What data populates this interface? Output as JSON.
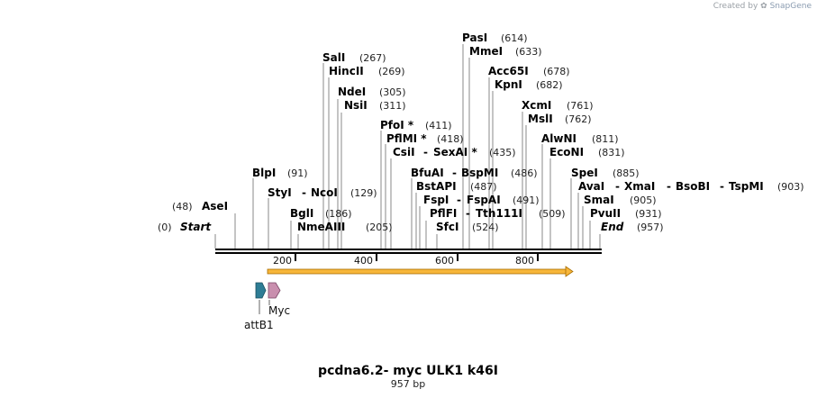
{
  "credit": {
    "prefix": "Created by",
    "brand": "SnapGene"
  },
  "title": "pcdna6.2- myc ULK1 k46I",
  "length": "957 bp",
  "enzymes": {
    "start": {
      "name": "Start",
      "pos": "(0)"
    },
    "end": {
      "name": "End",
      "pos": "(957)"
    },
    "asei": {
      "name": "AseI",
      "pos": "(48)"
    },
    "blpi": {
      "name": "BlpI",
      "pos": "(91)"
    },
    "styi": {
      "name": "StyI"
    },
    "ncoi": {
      "name": "NcoI",
      "pos": "(129)"
    },
    "bgli": {
      "name": "BglI",
      "pos": "(186)"
    },
    "nmeaiii": {
      "name": "NmeAIII",
      "pos": "(205)"
    },
    "sali": {
      "name": "SalI",
      "pos": "(267)"
    },
    "hincii": {
      "name": "HincII",
      "pos": "(269)"
    },
    "ndei": {
      "name": "NdeI",
      "pos": "(305)"
    },
    "nsii": {
      "name": "NsiI",
      "pos": "(311)"
    },
    "pfoi": {
      "name": "PfoI *",
      "pos": "(411)"
    },
    "pflmi": {
      "name": "PflMI *",
      "pos": "(418)"
    },
    "csii": {
      "name": "CsiI"
    },
    "sexai": {
      "name": "SexAI *",
      "pos": "(435)"
    },
    "bfuai": {
      "name": "BfuAI"
    },
    "bspmi": {
      "name": "BspMI",
      "pos": "(486)"
    },
    "bstapi": {
      "name": "BstAPI",
      "pos": "(487)"
    },
    "fspi": {
      "name": "FspI"
    },
    "fspai": {
      "name": "FspAI",
      "pos": "(491)"
    },
    "pflfi": {
      "name": "PflFI"
    },
    "tth111i": {
      "name": "Tth111I",
      "pos": "(509)"
    },
    "sfci": {
      "name": "SfcI",
      "pos": "(524)"
    },
    "pasi": {
      "name": "PasI",
      "pos": "(614)"
    },
    "mmei": {
      "name": "MmeI",
      "pos": "(633)"
    },
    "acc65i": {
      "name": "Acc65I",
      "pos": "(678)"
    },
    "kpni": {
      "name": "KpnI",
      "pos": "(682)"
    },
    "xcmi": {
      "name": "XcmI",
      "pos": "(761)"
    },
    "msli": {
      "name": "MslI",
      "pos": "(762)"
    },
    "alwni": {
      "name": "AlwNI",
      "pos": "(811)"
    },
    "econi": {
      "name": "EcoNI",
      "pos": "(831)"
    },
    "spei": {
      "name": "SpeI",
      "pos": "(885)"
    },
    "avai": {
      "name": "AvaI"
    },
    "xmai": {
      "name": "XmaI"
    },
    "bsobi": {
      "name": "BsoBI"
    },
    "tspmi": {
      "name": "TspMI",
      "pos": "(903)"
    },
    "smai": {
      "name": "SmaI",
      "pos": "(905)"
    },
    "pvuii": {
      "name": "PvuII",
      "pos": "(931)"
    }
  },
  "ruler": {
    "t200": "200",
    "t400": "400",
    "t600": "600",
    "t800": "800"
  },
  "features": {
    "attb1": "attB1",
    "myc": "Myc"
  },
  "colors": {
    "orf": "#f7b63a",
    "attb1": "#2e7d95",
    "myc": "#c98fae",
    "backbone": "#000000",
    "leader": "#888888"
  }
}
